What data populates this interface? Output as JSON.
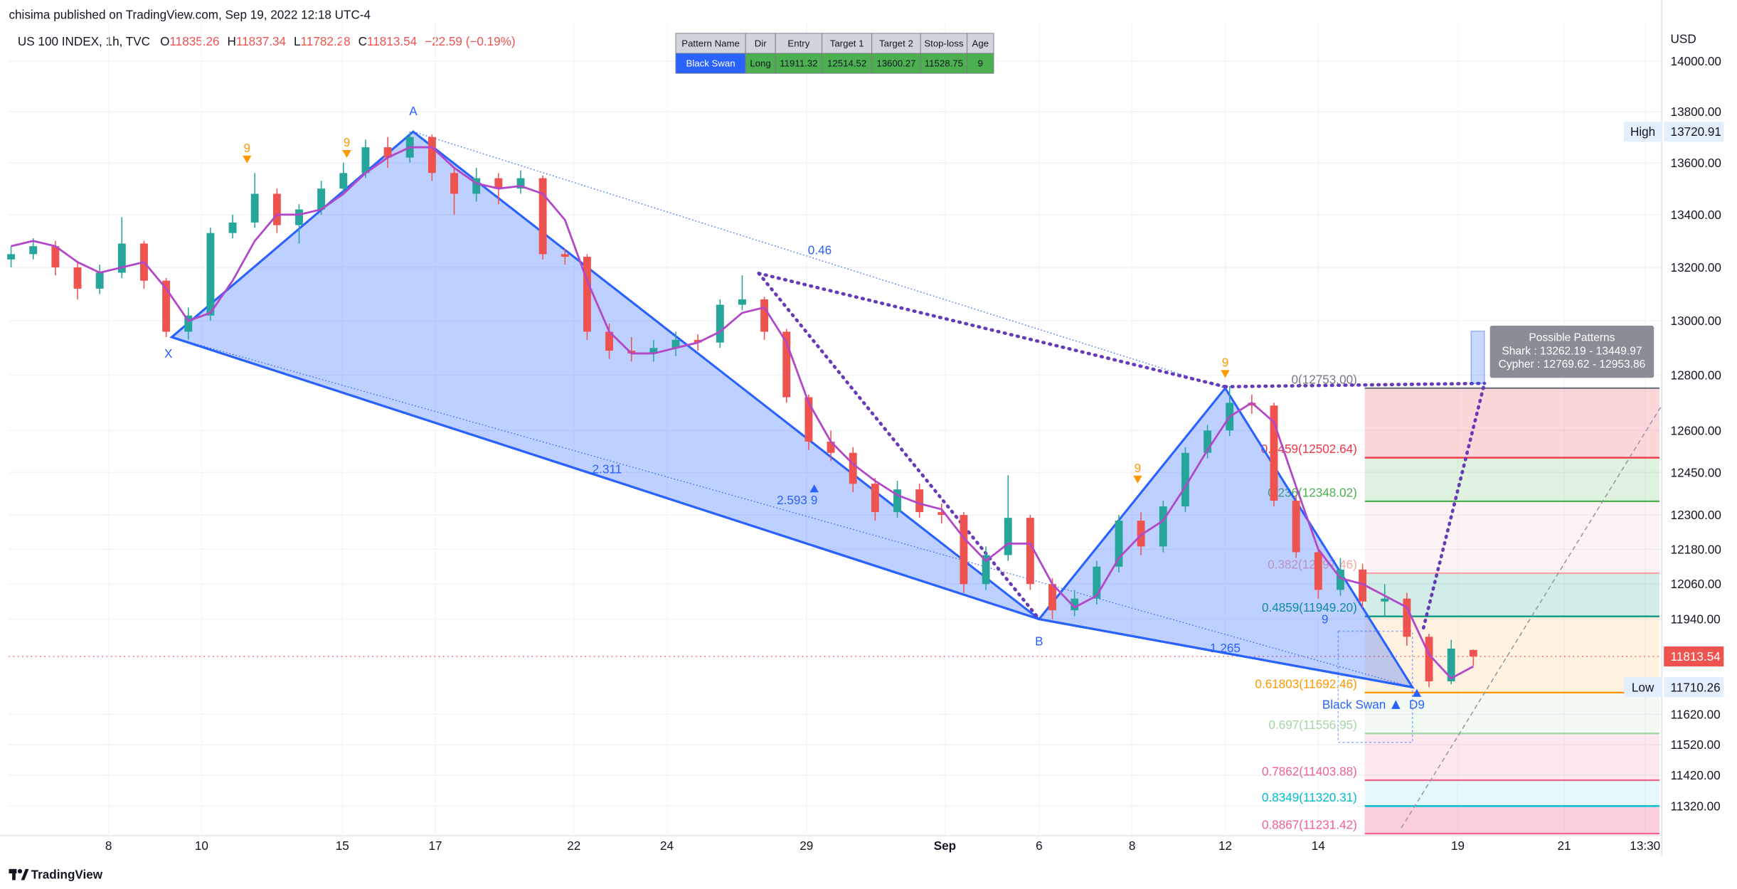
{
  "header": "chisima published on TradingView.com, Sep 19, 2022 12:18 UTC-4",
  "brand": "TradingView",
  "table": {
    "columns": [
      "Pattern Name",
      "Dir",
      "Entry",
      "Target 1",
      "Target 2",
      "Stop-loss",
      "Age"
    ],
    "rows": [
      [
        "Black Swan",
        "Long",
        "11911.32",
        "12514.52",
        "13600.27",
        "11528.75",
        "9"
      ]
    ]
  },
  "chart_data": {
    "type": "candlestick",
    "title": "US 100 INDEX, 1h, TVC",
    "legend_labels": [
      "O",
      "H",
      "L",
      "C"
    ],
    "change": "−22.59 (−0.19%)",
    "y_unit": "USD",
    "log_scale": true,
    "ylim": [
      11232,
      14156
    ],
    "yticks": [
      {
        "value": 14000,
        "label": "14000.00"
      },
      {
        "value": 13800,
        "label": "13800.00"
      },
      {
        "value": 13600,
        "label": "13600.00"
      },
      {
        "value": 13400,
        "label": "13400.00"
      },
      {
        "value": 13200,
        "label": "13200.00"
      },
      {
        "value": 13000,
        "label": "13000.00"
      },
      {
        "value": 12800,
        "label": "12800.00"
      },
      {
        "value": 12600,
        "label": "12600.00"
      },
      {
        "value": 12450,
        "label": "12450.00"
      },
      {
        "value": 12300,
        "label": "12300.00"
      },
      {
        "value": 12180,
        "label": "12180.00"
      },
      {
        "value": 12060,
        "label": "12060.00"
      },
      {
        "value": 11940,
        "label": "11940.00"
      },
      {
        "value": 11620,
        "label": "11620.00"
      },
      {
        "value": 11520,
        "label": "11520.00"
      },
      {
        "value": 11420,
        "label": "11420.00"
      },
      {
        "value": 11320,
        "label": "11320.00"
      }
    ],
    "x_labels": [
      "8",
      "10",
      "15",
      "17",
      "22",
      "24",
      "29",
      "Sep",
      "6",
      "8",
      "12",
      "14",
      "19",
      "21",
      "13:30"
    ],
    "up_color": "#26a69a",
    "down_color": "#ef5350",
    "open": [
      13230,
      13250,
      13280,
      13200,
      13120,
      13180,
      13290,
      13150,
      12960,
      13020,
      13330,
      13370,
      13480,
      13360,
      13420,
      13500,
      13560,
      13660,
      13620,
      13700,
      13560,
      13480,
      13540,
      13500,
      13540,
      13250,
      13240,
      12960,
      12890,
      12880,
      12900,
      12930,
      12920,
      13060,
      13080,
      12960,
      12720,
      12560,
      12520,
      12410,
      12310,
      12390,
      12310,
      12300,
      12060,
      12160,
      12290,
      12060,
      11970,
      12010,
      12120,
      12280,
      12190,
      12330,
      12520,
      12600,
      12700,
      12690,
      12350,
      12170,
      12040,
      12110,
      12000,
      12010,
      11880,
      11730,
      11835.26
    ],
    "high": [
      13280,
      13310,
      13300,
      13220,
      13210,
      13390,
      13300,
      13160,
      13050,
      13350,
      13400,
      13560,
      13500,
      13440,
      13530,
      13600,
      13690,
      13700,
      13720.91,
      13710,
      13580,
      13580,
      13560,
      13570,
      13550,
      13270,
      13250,
      12990,
      12940,
      12930,
      12960,
      12950,
      13080,
      13170,
      13090,
      12970,
      12730,
      12600,
      12540,
      12430,
      12420,
      12410,
      12340,
      12310,
      12190,
      12440,
      12300,
      12080,
      12040,
      12140,
      12300,
      12310,
      12350,
      12540,
      12620,
      12760,
      12730,
      12700,
      12370,
      12190,
      12150,
      12130,
      12060,
      12030,
      11890,
      11870,
      11837.34
    ],
    "low": [
      13200,
      13230,
      13170,
      13080,
      13100,
      13160,
      13120,
      12940,
      12930,
      13000,
      13310,
      13350,
      13330,
      13290,
      13400,
      13480,
      13540,
      13580,
      13600,
      13530,
      13400,
      13450,
      13440,
      13480,
      13230,
      13210,
      12930,
      12860,
      12850,
      12850,
      12870,
      12890,
      12900,
      13040,
      12930,
      12700,
      12530,
      12490,
      12380,
      12280,
      12290,
      12290,
      12270,
      12030,
      12040,
      12140,
      12040,
      11940,
      11950,
      11990,
      12100,
      12160,
      12170,
      12310,
      12500,
      12580,
      12660,
      12330,
      12150,
      12010,
      12020,
      11980,
      11950,
      11850,
      11710.26,
      11720,
      11782.28
    ],
    "close": [
      13250,
      13280,
      13200,
      13120,
      13180,
      13290,
      13150,
      12960,
      13020,
      13330,
      13370,
      13480,
      13360,
      13420,
      13500,
      13560,
      13660,
      13620,
      13700,
      13560,
      13480,
      13540,
      13500,
      13540,
      13250,
      13240,
      12960,
      12890,
      12880,
      12900,
      12930,
      12920,
      13060,
      13080,
      12960,
      12720,
      12560,
      12520,
      12410,
      12310,
      12390,
      12310,
      12300,
      12060,
      12160,
      12290,
      12060,
      11970,
      12010,
      12120,
      12280,
      12190,
      12330,
      12520,
      12600,
      12700,
      12690,
      12350,
      12170,
      12040,
      12110,
      12000,
      12010,
      11880,
      11730,
      11840,
      11813.54
    ],
    "ma": {
      "color": "#b248c8",
      "values": [
        13280,
        13300,
        13280,
        13220,
        13180,
        13200,
        13220,
        13120,
        13000,
        13030,
        13150,
        13300,
        13400,
        13400,
        13420,
        13480,
        13560,
        13620,
        13660,
        13660,
        13580,
        13520,
        13500,
        13510,
        13480,
        13380,
        13150,
        12960,
        12880,
        12880,
        12900,
        12920,
        12960,
        13030,
        13050,
        12920,
        12700,
        12560,
        12480,
        12420,
        12370,
        12340,
        12320,
        12220,
        12140,
        12200,
        12200,
        12060,
        11980,
        12020,
        12150,
        12230,
        12280,
        12400,
        12530,
        12650,
        12700,
        12630,
        12400,
        12180,
        12080,
        12060,
        12020,
        11980,
        11820,
        11740,
        11780
      ]
    },
    "pattern": {
      "color": "#2962ff",
      "fill": "rgba(41,98,255,0.3)",
      "points": [
        {
          "label": "X",
          "value": 12940
        },
        {
          "label": "A",
          "value": 13720.91
        },
        {
          "label": "B",
          "value": 11940
        },
        {
          "value": 12753
        },
        {
          "value": 11710.26
        }
      ],
      "ratios": [
        "0.46",
        "2.311",
        "2.593",
        "1.265"
      ],
      "name": "Black Swan"
    },
    "fib_levels": [
      {
        "label": "0(12753.00)",
        "value": 12753,
        "color": "#787b86",
        "fill": "rgba(242,54,69,0.2)"
      },
      {
        "label": "0.1459(12502.64)",
        "value": 12502.64,
        "color": "#f23645",
        "fill": "rgba(76,175,80,0.18)"
      },
      {
        "label": "0.236(12348.02)",
        "value": 12348.02,
        "color": "#4caf50",
        "fill": "rgba(242,54,69,0.06)"
      },
      {
        "label": "0.382(12097.46)",
        "value": 12097.46,
        "color": "#f7a6a6",
        "fill": "rgba(8,153,129,0.18)"
      },
      {
        "label": "0.4859(11949.20)",
        "value": 11949.2,
        "color": "#089981",
        "fill": "rgba(255,152,0,0.12)"
      },
      {
        "label": "0.61803(11692.46)",
        "value": 11692.46,
        "color": "#ff9800",
        "fill": "rgba(76,175,80,0.07)"
      },
      {
        "label": "0.697(11556.95)",
        "value": 11556.95,
        "color": "#a5d6a7",
        "fill": "rgba(233,30,99,0.1)"
      },
      {
        "label": "0.7862(11403.88)",
        "value": 11403.88,
        "color": "#f06292",
        "fill": "rgba(0,188,212,0.1)"
      },
      {
        "label": "0.8349(11320.31)",
        "value": 11320.31,
        "color": "#00bcd4",
        "fill": "rgba(233,30,99,0.22)"
      },
      {
        "label": "0.8867(11231.42)",
        "value": 11231.42,
        "color": "#f06292"
      }
    ],
    "markers": [
      {
        "text": "9",
        "color": "#ff9800"
      },
      {
        "text": "9",
        "color": "#ff9800"
      },
      {
        "text": "9",
        "color": "#2962ff"
      },
      {
        "text": "9",
        "color": "#ff9800"
      },
      {
        "text": "9",
        "color": "#ff9800"
      },
      {
        "text": "9",
        "color": "#2962ff"
      },
      {
        "text": "D9",
        "color": "#2962ff"
      }
    ],
    "price_labels": [
      {
        "label": "High",
        "value": 13720.91
      },
      {
        "label": "Low",
        "value": 11710.26
      }
    ],
    "possible_patterns": [
      "Possible Patterns",
      "Shark : 13262.19 - 13449.97",
      "Cypher : 12769.62 - 12953.86"
    ]
  }
}
